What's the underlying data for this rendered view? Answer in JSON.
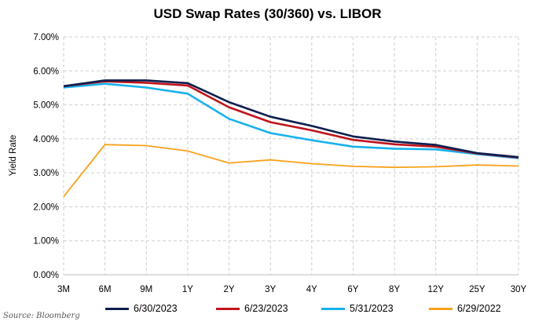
{
  "chart_data": {
    "type": "line",
    "title": "USD Swap Rates (30/360) vs. LIBOR",
    "ylabel": "Yield Rate",
    "xlabel": "",
    "categories": [
      "3M",
      "6M",
      "9M",
      "1Y",
      "2Y",
      "3Y",
      "4Y",
      "6Y",
      "8Y",
      "12Y",
      "25Y",
      "30Y"
    ],
    "y_ticks": [
      "0.00%",
      "1.00%",
      "2.00%",
      "3.00%",
      "4.00%",
      "5.00%",
      "6.00%",
      "7.00%"
    ],
    "ylim": [
      0,
      7
    ],
    "grid": true,
    "legend_position": "bottom",
    "series": [
      {
        "name": "6/30/2023",
        "color": "#0d1f4f",
        "values": [
          5.55,
          5.72,
          5.72,
          5.64,
          5.08,
          4.65,
          4.38,
          4.07,
          3.92,
          3.82,
          3.58,
          3.46
        ]
      },
      {
        "name": "6/23/2023",
        "color": "#c0141c",
        "values": [
          5.55,
          5.69,
          5.65,
          5.57,
          4.93,
          4.49,
          4.25,
          3.97,
          3.84,
          3.77,
          3.57,
          3.45
        ]
      },
      {
        "name": "5/31/2023",
        "color": "#16b1ec",
        "values": [
          5.51,
          5.62,
          5.51,
          5.33,
          4.59,
          4.17,
          3.96,
          3.77,
          3.71,
          3.69,
          3.55,
          3.43
        ]
      },
      {
        "name": "6/29/2022",
        "color": "#f7a21b",
        "values": [
          2.3,
          3.83,
          3.8,
          3.64,
          3.29,
          3.38,
          3.27,
          3.19,
          3.16,
          3.18,
          3.23,
          3.2
        ]
      }
    ]
  },
  "source": "Source: Bloomberg"
}
